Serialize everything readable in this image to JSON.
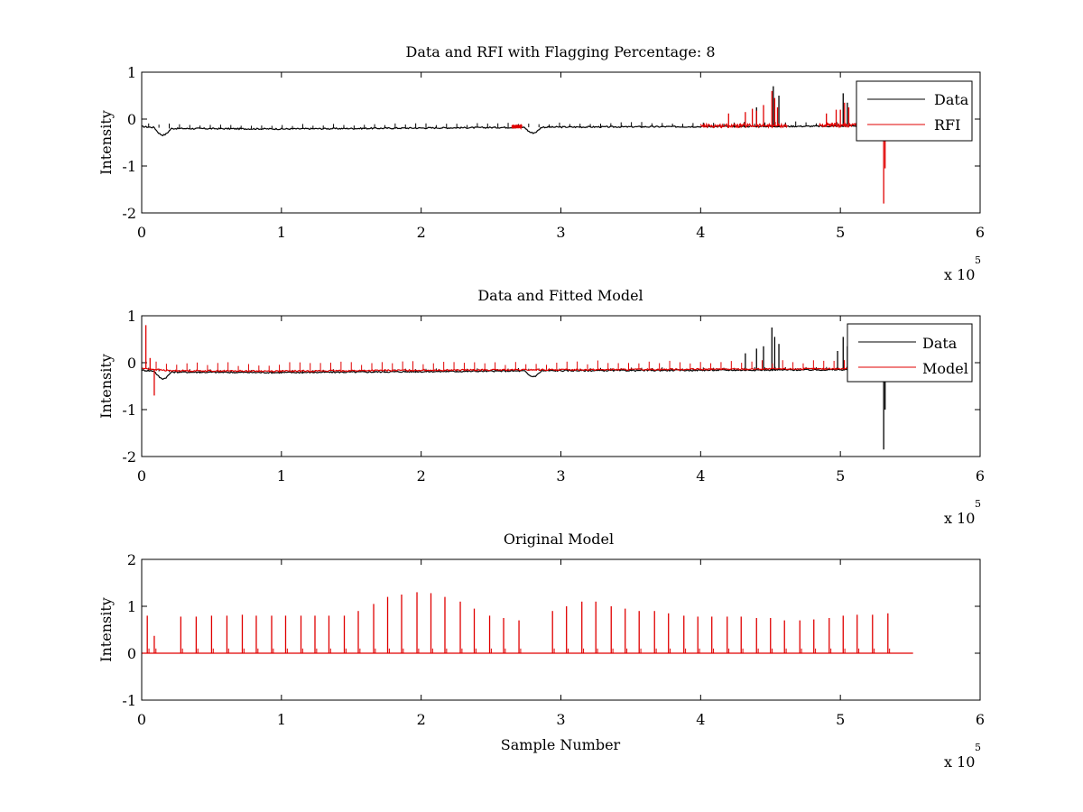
{
  "chart_data": [
    {
      "type": "line",
      "title": "Data and RFI with Flagging Percentage: 8",
      "xlabel": "",
      "ylabel": "Intensity",
      "x_multiplier": "x 10",
      "x_exponent": "5",
      "xlim": [
        0,
        6
      ],
      "ylim": [
        -2,
        1
      ],
      "xticks": [
        "0",
        "1",
        "2",
        "3",
        "4",
        "5",
        "6"
      ],
      "yticks": [
        "-2",
        "-1",
        "0",
        "1"
      ],
      "grid": false,
      "legend": {
        "position": "top-right",
        "entries": [
          "Data",
          "RFI"
        ]
      },
      "series": [
        {
          "name": "Data",
          "color": "#000000",
          "baseline": [
            [
              0,
              -0.16
            ],
            [
              0.2,
              -0.2
            ],
            [
              1,
              -0.21
            ],
            [
              2,
              -0.19
            ],
            [
              3,
              -0.17
            ],
            [
              4,
              -0.16
            ],
            [
              5,
              -0.15
            ],
            [
              5.3,
              -0.14
            ]
          ],
          "dips": [
            {
              "x": 0.15,
              "depth": 0.15,
              "width": 0.06
            },
            {
              "x": 2.8,
              "depth": 0.12,
              "width": 0.06
            }
          ],
          "spike_start": 0.05,
          "spike_end": 5.3,
          "spike_spacing": 0.0735,
          "spike_height": 0.08,
          "bursts": [
            [
              4.4,
              4.4,
              0.25
            ],
            [
              4.52,
              4.52,
              0.7
            ],
            [
              4.56,
              4.56,
              0.5
            ],
            [
              5.02,
              5.02,
              0.55
            ],
            [
              5.05,
              5.05,
              0.35
            ]
          ]
        },
        {
          "name": "RFI",
          "color": "#e00000",
          "segments": [
            [
              2.65,
              2.72
            ],
            [
              4.0,
              4.62
            ],
            [
              4.85,
              5.3
            ]
          ],
          "bursts": [
            [
              4.2,
              4.2,
              0.12
            ],
            [
              4.32,
              4.32,
              0.15
            ],
            [
              4.37,
              4.37,
              0.22
            ],
            [
              4.4,
              4.4,
              0.18
            ],
            [
              4.45,
              4.45,
              0.3
            ],
            [
              4.51,
              4.51,
              0.6
            ],
            [
              4.53,
              4.53,
              0.45
            ],
            [
              4.55,
              4.55,
              0.25
            ],
            [
              4.9,
              4.9,
              0.12
            ],
            [
              4.97,
              4.97,
              0.2
            ],
            [
              5.0,
              5.0,
              0.2
            ],
            [
              5.03,
              5.03,
              0.35
            ],
            [
              5.06,
              5.06,
              0.25
            ],
            [
              5.28,
              5.28,
              0.15
            ]
          ],
          "negative_spikes": [
            [
              5.31,
              -1.8
            ],
            [
              5.32,
              -1.05
            ]
          ]
        }
      ]
    },
    {
      "type": "line",
      "title": "Data and Fitted Model",
      "xlabel": "",
      "ylabel": "Intensity",
      "x_multiplier": "x 10",
      "x_exponent": "5",
      "xlim": [
        0,
        6
      ],
      "ylim": [
        -2,
        1
      ],
      "xticks": [
        "0",
        "1",
        "2",
        "3",
        "4",
        "5",
        "6"
      ],
      "yticks": [
        "-2",
        "-1",
        "0",
        "1"
      ],
      "grid": false,
      "legend": {
        "position": "top-right",
        "entries": [
          "Data",
          "Model"
        ]
      },
      "series": [
        {
          "name": "Data",
          "color": "#000000",
          "baseline": [
            [
              0,
              -0.16
            ],
            [
              0.2,
              -0.2
            ],
            [
              1,
              -0.21
            ],
            [
              2,
              -0.19
            ],
            [
              3,
              -0.17
            ],
            [
              4,
              -0.16
            ],
            [
              5,
              -0.15
            ],
            [
              5.3,
              -0.14
            ]
          ],
          "dips": [
            {
              "x": 0.15,
              "depth": 0.15,
              "width": 0.06
            },
            {
              "x": 2.8,
              "depth": 0.12,
              "width": 0.06
            }
          ],
          "spike_start": 0.05,
          "spike_end": 5.3,
          "spike_spacing": 0.0735,
          "spike_height": 0.05,
          "bursts": [
            [
              4.32,
              4.32,
              0.2
            ],
            [
              4.4,
              4.4,
              0.3
            ],
            [
              4.45,
              4.45,
              0.35
            ],
            [
              4.51,
              4.51,
              0.75
            ],
            [
              4.53,
              4.53,
              0.55
            ],
            [
              4.56,
              4.56,
              0.4
            ],
            [
              4.98,
              4.98,
              0.25
            ],
            [
              5.02,
              5.02,
              0.55
            ],
            [
              5.05,
              5.05,
              0.35
            ]
          ],
          "negative_spikes": [
            [
              5.31,
              -1.85
            ],
            [
              5.32,
              -1.0
            ]
          ]
        },
        {
          "name": "Model",
          "color": "#e00000",
          "baseline": [
            [
              0,
              -0.12
            ],
            [
              0.2,
              -0.17
            ],
            [
              1,
              -0.18
            ],
            [
              2,
              -0.16
            ],
            [
              3,
              -0.15
            ],
            [
              4,
              -0.14
            ],
            [
              5,
              -0.13
            ],
            [
              5.3,
              -0.12
            ]
          ],
          "spike_start": 0.03,
          "spike_end": 5.3,
          "spike_spacing": 0.0735,
          "spike_height": 0.15,
          "bursts": [
            [
              0.03,
              0.03,
              0.8
            ],
            [
              0.06,
              0.06,
              0.1
            ]
          ],
          "negative_spikes": [
            [
              0.09,
              -0.7
            ]
          ]
        }
      ]
    },
    {
      "type": "line",
      "title": "Original Model",
      "xlabel": "Sample Number",
      "ylabel": "Intensity",
      "x_multiplier": "x 10",
      "x_exponent": "5",
      "xlim": [
        0,
        6
      ],
      "ylim": [
        -1,
        2
      ],
      "xticks": [
        "0",
        "1",
        "2",
        "3",
        "4",
        "5",
        "6"
      ],
      "yticks": [
        "-1",
        "0",
        "1",
        "2"
      ],
      "grid": false,
      "series": [
        {
          "name": "Model",
          "color": "#e00000",
          "baseline": [
            [
              0,
              0
            ],
            [
              5.52,
              0
            ]
          ],
          "peaks": [
            [
              0.04,
              0.8
            ],
            [
              0.09,
              0.37
            ],
            [
              0.28,
              0.78
            ],
            [
              0.39,
              0.78
            ],
            [
              0.5,
              0.8
            ],
            [
              0.61,
              0.8
            ],
            [
              0.72,
              0.82
            ],
            [
              0.82,
              0.8
            ],
            [
              0.93,
              0.8
            ],
            [
              1.03,
              0.8
            ],
            [
              1.14,
              0.8
            ],
            [
              1.24,
              0.8
            ],
            [
              1.34,
              0.8
            ],
            [
              1.45,
              0.8
            ],
            [
              1.55,
              0.9
            ],
            [
              1.66,
              1.05
            ],
            [
              1.76,
              1.2
            ],
            [
              1.86,
              1.25
            ],
            [
              1.97,
              1.3
            ],
            [
              2.07,
              1.28
            ],
            [
              2.17,
              1.2
            ],
            [
              2.28,
              1.1
            ],
            [
              2.38,
              0.95
            ],
            [
              2.49,
              0.8
            ],
            [
              2.59,
              0.75
            ],
            [
              2.7,
              0.7
            ],
            [
              2.94,
              0.9
            ],
            [
              3.04,
              1.0
            ],
            [
              3.15,
              1.1
            ],
            [
              3.25,
              1.1
            ],
            [
              3.36,
              1.0
            ],
            [
              3.46,
              0.95
            ],
            [
              3.56,
              0.9
            ],
            [
              3.67,
              0.9
            ],
            [
              3.77,
              0.85
            ],
            [
              3.88,
              0.8
            ],
            [
              3.98,
              0.78
            ],
            [
              4.08,
              0.78
            ],
            [
              4.19,
              0.78
            ],
            [
              4.29,
              0.78
            ],
            [
              4.4,
              0.75
            ],
            [
              4.5,
              0.75
            ],
            [
              4.6,
              0.7
            ],
            [
              4.71,
              0.7
            ],
            [
              4.81,
              0.72
            ],
            [
              4.92,
              0.75
            ],
            [
              5.02,
              0.8
            ],
            [
              5.12,
              0.82
            ],
            [
              5.23,
              0.82
            ],
            [
              5.34,
              0.85
            ]
          ]
        }
      ]
    }
  ]
}
